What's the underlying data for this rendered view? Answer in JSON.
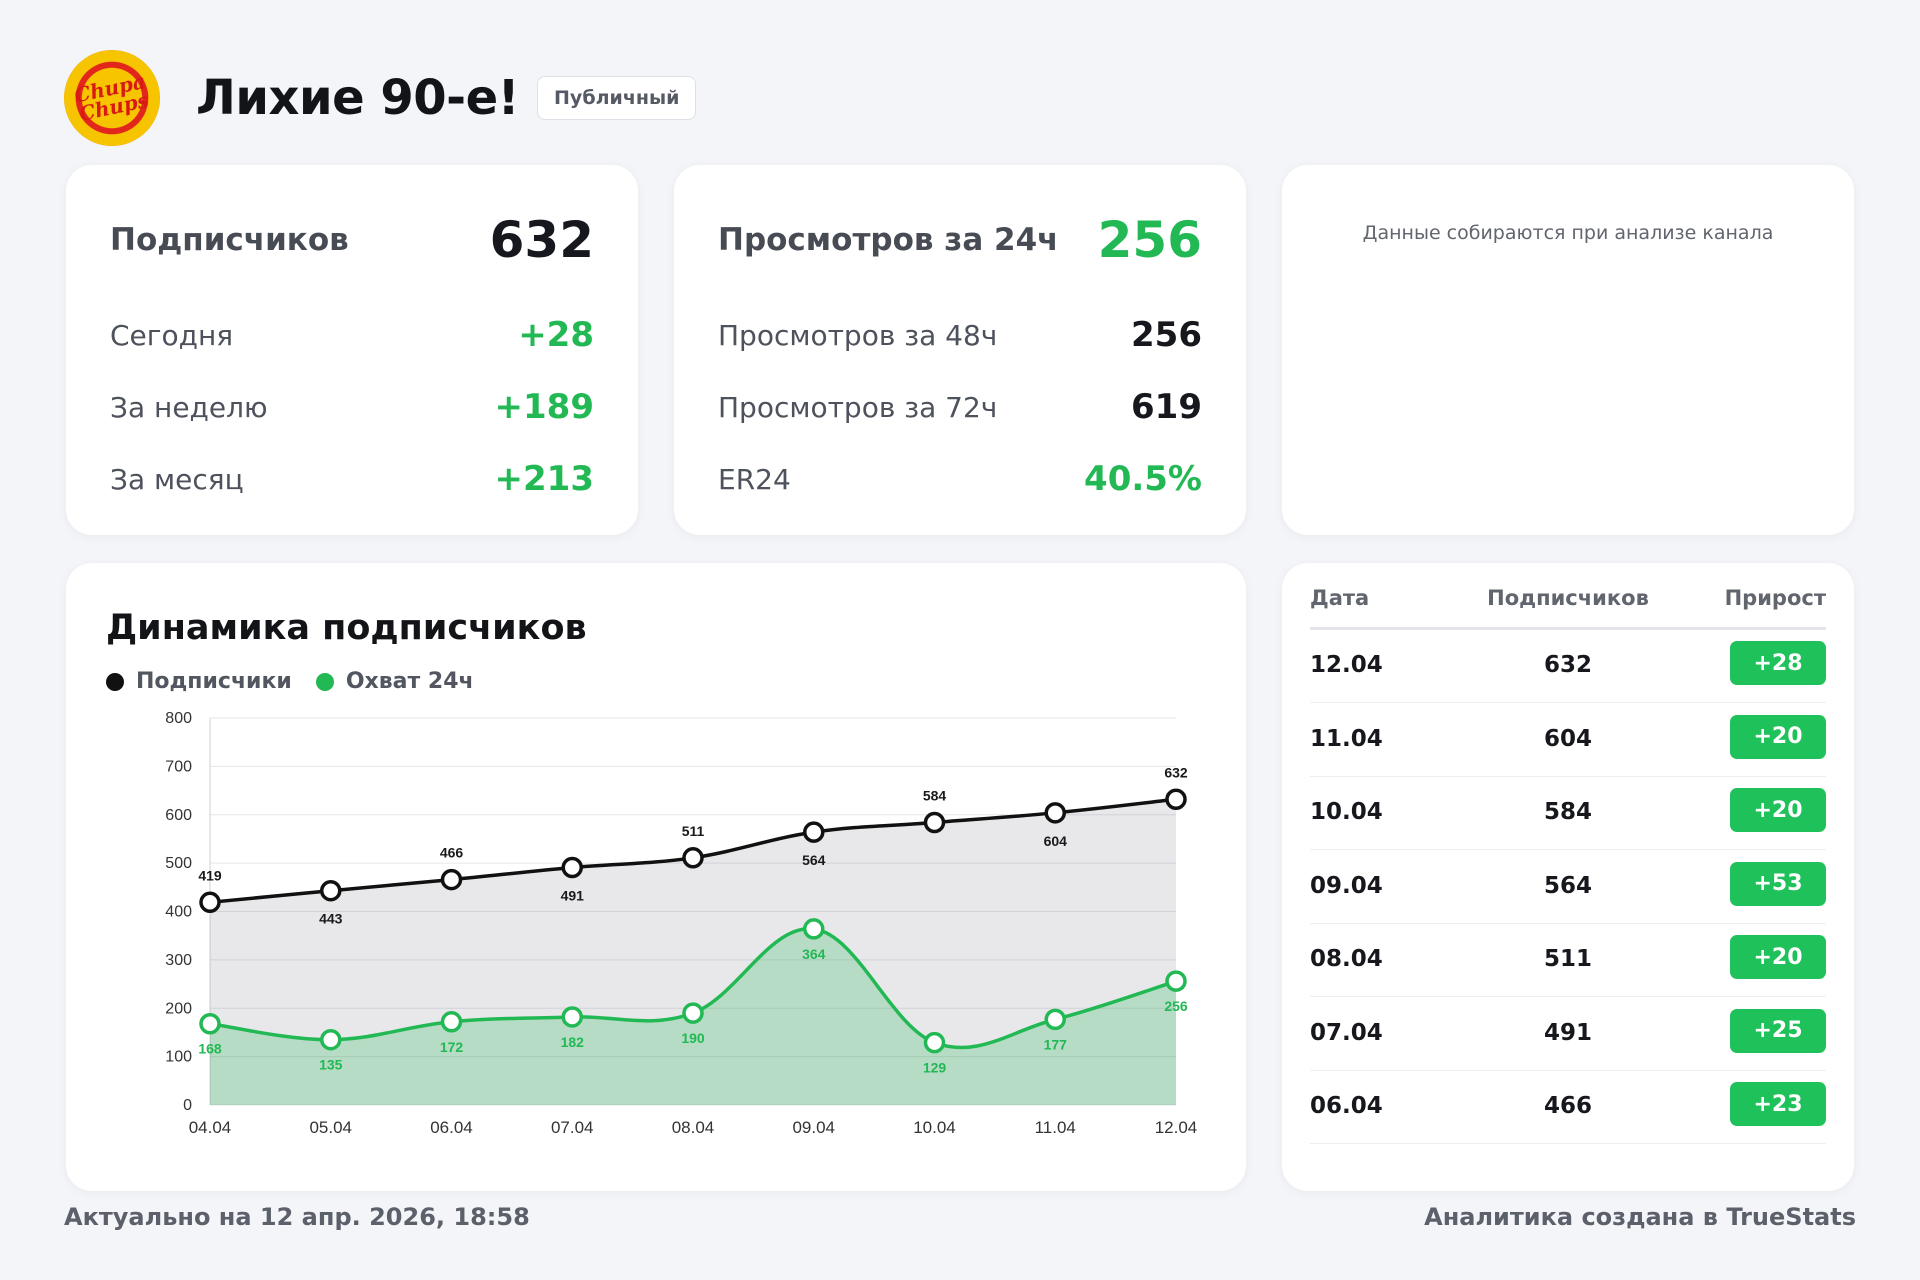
{
  "header": {
    "logo_text": "Chupa Chups",
    "title": "Лихие 90-е!",
    "badge": "Публичный"
  },
  "subscribers_card": {
    "label": "Подписчиков",
    "value": "632",
    "rows": [
      {
        "label": "Сегодня",
        "value": "+28"
      },
      {
        "label": "За неделю",
        "value": "+189"
      },
      {
        "label": "За месяц",
        "value": "+213"
      }
    ]
  },
  "views_card": {
    "label": "Просмотров за 24ч",
    "value": "256",
    "rows": [
      {
        "label": "Просмотров за 48ч",
        "value": "256"
      },
      {
        "label": "Просмотров за 72ч",
        "value": "619"
      },
      {
        "label": "ER24",
        "value": "40.5%"
      }
    ]
  },
  "placeholder_card": {
    "text": "Данные собираются при анализе канала"
  },
  "chart_section": {
    "title": "Динамика подписчиков"
  },
  "chart_data": {
    "type": "line",
    "categories": [
      "04.04",
      "05.04",
      "06.04",
      "07.04",
      "08.04",
      "09.04",
      "10.04",
      "11.04",
      "12.04"
    ],
    "series": [
      {
        "name": "Подписчики",
        "values": [
          419,
          443,
          466,
          491,
          511,
          564,
          584,
          604,
          632
        ],
        "color": "#111111"
      },
      {
        "name": "Охват 24ч",
        "values": [
          168,
          135,
          172,
          182,
          190,
          364,
          129,
          177,
          256
        ],
        "color": "#22b854"
      }
    ],
    "yticks": [
      0,
      100,
      200,
      300,
      400,
      500,
      600,
      700,
      800
    ],
    "ylim": [
      0,
      800
    ],
    "grid": true,
    "legend": "top-left"
  },
  "table": {
    "headers": [
      "Дата",
      "Подписчиков",
      "Прирост"
    ],
    "rows": [
      {
        "date": "12.04",
        "subs": "632",
        "growth": "+28"
      },
      {
        "date": "11.04",
        "subs": "604",
        "growth": "+20"
      },
      {
        "date": "10.04",
        "subs": "584",
        "growth": "+20"
      },
      {
        "date": "09.04",
        "subs": "564",
        "growth": "+53"
      },
      {
        "date": "08.04",
        "subs": "511",
        "growth": "+20"
      },
      {
        "date": "07.04",
        "subs": "491",
        "growth": "+25"
      },
      {
        "date": "06.04",
        "subs": "466",
        "growth": "+23"
      }
    ]
  },
  "footer": {
    "updated": "Актуально на 12 апр. 2026, 18:58",
    "credit": "Аналитика создана в TrueStats"
  },
  "colors": {
    "accent_green": "#22b854",
    "badge_green": "#1fc25a",
    "dark": "#111111",
    "background": "#f4f5f8"
  }
}
